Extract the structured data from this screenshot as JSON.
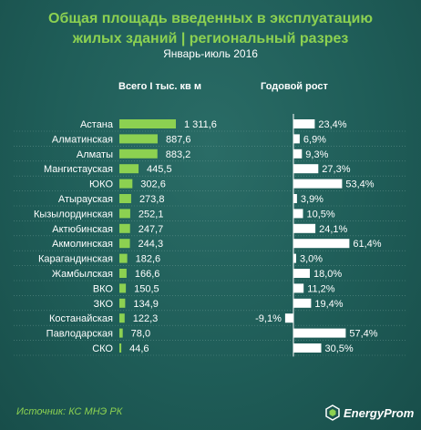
{
  "header": {
    "title_line1": "Общая площадь введенных в эксплуатацию",
    "title_line2": "жилых зданий | региональный разрез",
    "subtitle": "Январь-июль 2016"
  },
  "columns": {
    "left": "Всего I тыс. кв м",
    "right": "Годовой рост"
  },
  "footer": {
    "source": "Источник: КС МНЭ РК",
    "logo": "EnergyProm"
  },
  "colors": {
    "accent": "#8cd151",
    "background": "#1e5b57",
    "growth_bar": "#ffffff"
  },
  "chart_data": [
    {
      "type": "bar",
      "orientation": "horizontal",
      "title": "Всего I тыс. кв м",
      "categories": [
        "Астана",
        "Алматинская",
        "Алматы",
        "Мангистауская",
        "ЮКО",
        "Атырауская",
        "Кызылординская",
        "Актюбинская",
        "Акмолинская",
        "Карагандинская",
        "Жамбылская",
        "ВКО",
        "ЗКО",
        "Костанайская",
        "Павлодарская",
        "СКО"
      ],
      "values": [
        1311.6,
        887.6,
        883.2,
        445.5,
        302.6,
        273.8,
        252.1,
        247.7,
        244.3,
        182.6,
        166.6,
        150.5,
        134.9,
        122.3,
        78.0,
        44.6
      ],
      "labels": [
        "1 311,6",
        "887,6",
        "883,2",
        "445,5",
        "302,6",
        "273,8",
        "252,1",
        "247,7",
        "244,3",
        "182,6",
        "166,6",
        "150,5",
        "134,9",
        "122,3",
        "78,0",
        "44,6"
      ],
      "xlim": [
        0,
        1311.6
      ]
    },
    {
      "type": "bar",
      "orientation": "horizontal",
      "title": "Годовой рост",
      "categories": [
        "Астана",
        "Алматинская",
        "Алматы",
        "Мангистауская",
        "ЮКО",
        "Атырауская",
        "Кызылординская",
        "Актюбинская",
        "Акмолинская",
        "Карагандинская",
        "Жамбылская",
        "ВКО",
        "ЗКО",
        "Костанайская",
        "Павлодарская",
        "СКО"
      ],
      "values": [
        23.4,
        6.9,
        9.3,
        27.3,
        53.4,
        3.9,
        10.5,
        24.1,
        61.4,
        3.0,
        18.0,
        11.2,
        19.4,
        -9.1,
        57.4,
        30.5
      ],
      "labels": [
        "23,4%",
        "6,9%",
        "9,3%",
        "27,3%",
        "53,4%",
        "3,9%",
        "10,5%",
        "24,1%",
        "61,4%",
        "3,0%",
        "18,0%",
        "11,2%",
        "19,4%",
        "-9,1%",
        "57,4%",
        "30,5%"
      ],
      "unit": "%"
    }
  ]
}
